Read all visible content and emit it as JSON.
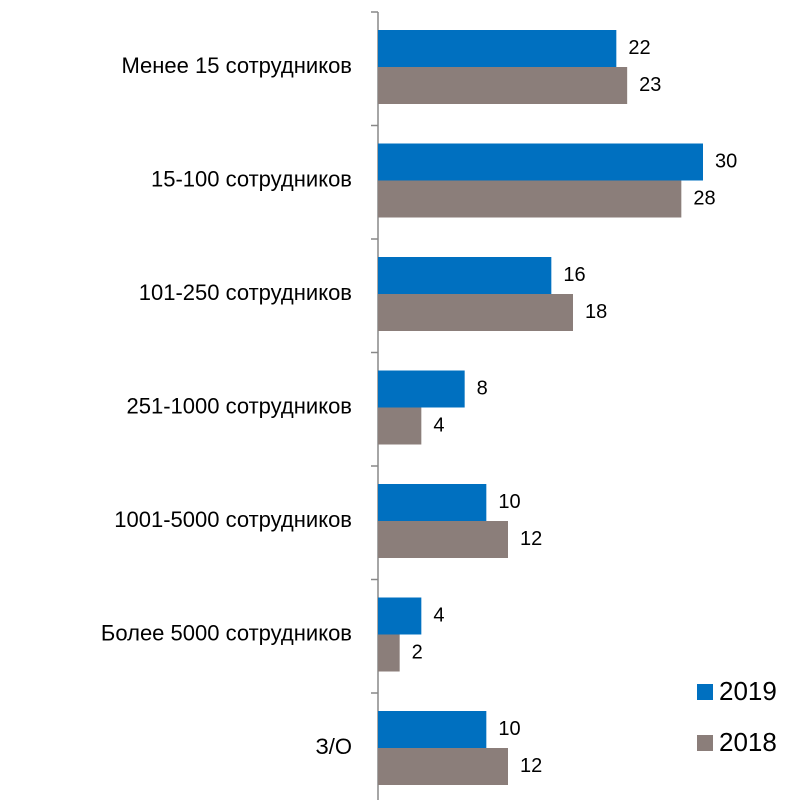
{
  "chart_data": {
    "type": "bar",
    "orientation": "horizontal",
    "categories": [
      "Менее 15 сотрудников",
      "15-100 сотрудников",
      "101-250 сотрудников",
      "251-1000 сотрудников",
      "1001-5000 сотрудников",
      "Более 5000 сотрудников",
      "З/О"
    ],
    "series": [
      {
        "name": "2019",
        "color": "#0070c0",
        "values": [
          22,
          30,
          16,
          8,
          10,
          4,
          10
        ]
      },
      {
        "name": "2018",
        "color": "#8b7e7a",
        "values": [
          23,
          28,
          18,
          4,
          12,
          2,
          12
        ]
      }
    ],
    "legend": "bottom-right"
  }
}
